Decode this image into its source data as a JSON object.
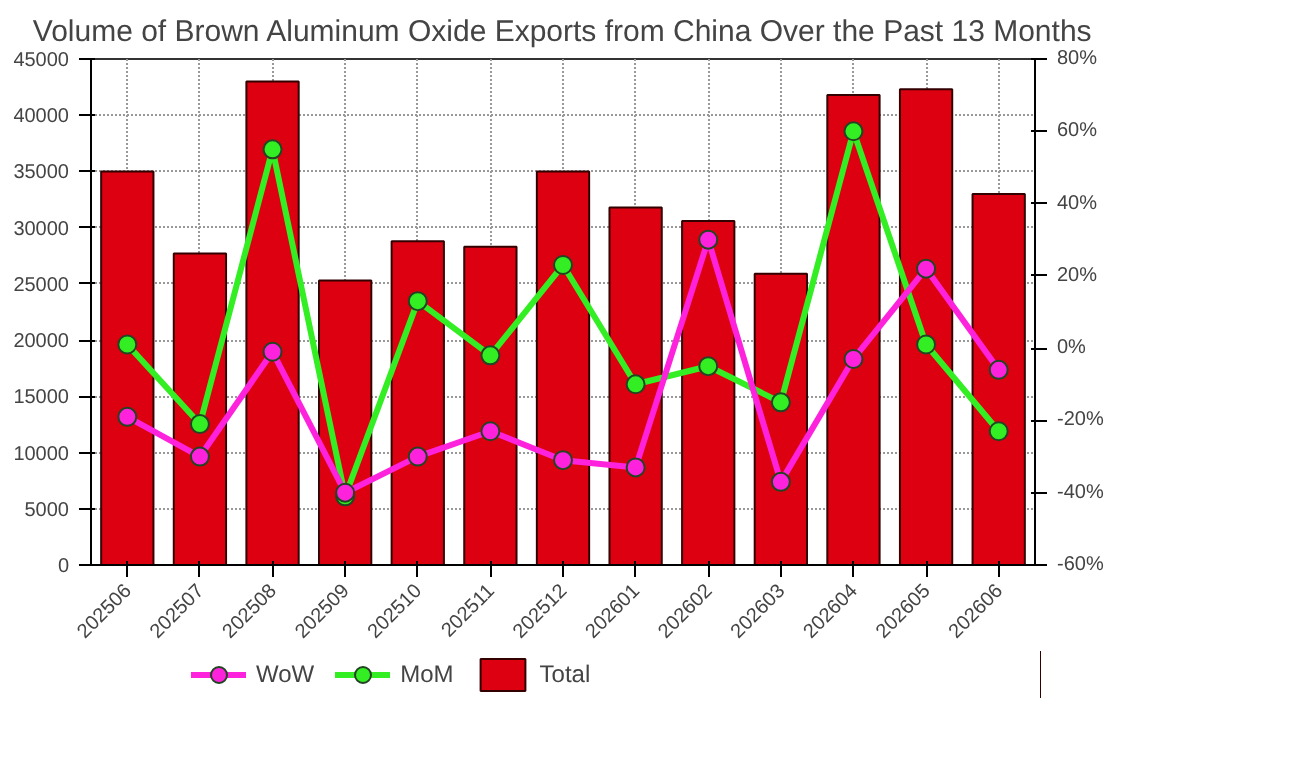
{
  "chart_data": {
    "type": "bar",
    "title": "Volume of Brown Aluminum Oxide Exports from China Over the Past 13 Months",
    "categories": [
      "202506",
      "202507",
      "202508",
      "202509",
      "202510",
      "202511",
      "202512",
      "202601",
      "202602",
      "202603",
      "202604",
      "202605",
      "202606"
    ],
    "series": [
      {
        "name": "WoW",
        "type": "line",
        "axis": "y2",
        "color": "#ff22dd",
        "marker": "circle",
        "values": [
          -19,
          -30,
          -1,
          -40,
          -30,
          -23,
          -31,
          -33,
          30,
          -37,
          -3,
          22,
          -6
        ]
      },
      {
        "name": "MoM",
        "type": "line",
        "axis": "y2",
        "color": "#33ee22",
        "marker": "circle",
        "values": [
          1,
          -21,
          55,
          -41,
          13,
          -2,
          23,
          -10,
          -5,
          -15,
          60,
          1,
          -23
        ]
      },
      {
        "name": "Total",
        "color": "#dd0010",
        "values": [
          35000,
          27700,
          43000,
          25300,
          28800,
          28300,
          35000,
          31800,
          30600,
          25900,
          41800,
          42300,
          33000
        ]
      }
    ],
    "ylim": [
      0,
      45000
    ],
    "yticks": [
      0,
      5000,
      10000,
      15000,
      20000,
      25000,
      30000,
      35000,
      40000,
      45000
    ],
    "y2lim": [
      -60,
      80
    ],
    "y2ticks": [
      {
        "value": -60,
        "label": "-60%"
      },
      {
        "value": -40,
        "label": "-40%"
      },
      {
        "value": -20,
        "label": "-20%"
      },
      {
        "value": 0,
        "label": "0%"
      },
      {
        "value": 20,
        "label": "20%"
      },
      {
        "value": 40,
        "label": "40%"
      },
      {
        "value": 60,
        "label": "60%"
      },
      {
        "value": 80,
        "label": "80%"
      }
    ],
    "grid": true,
    "legend": "bottom left",
    "line_style": "solid"
  }
}
